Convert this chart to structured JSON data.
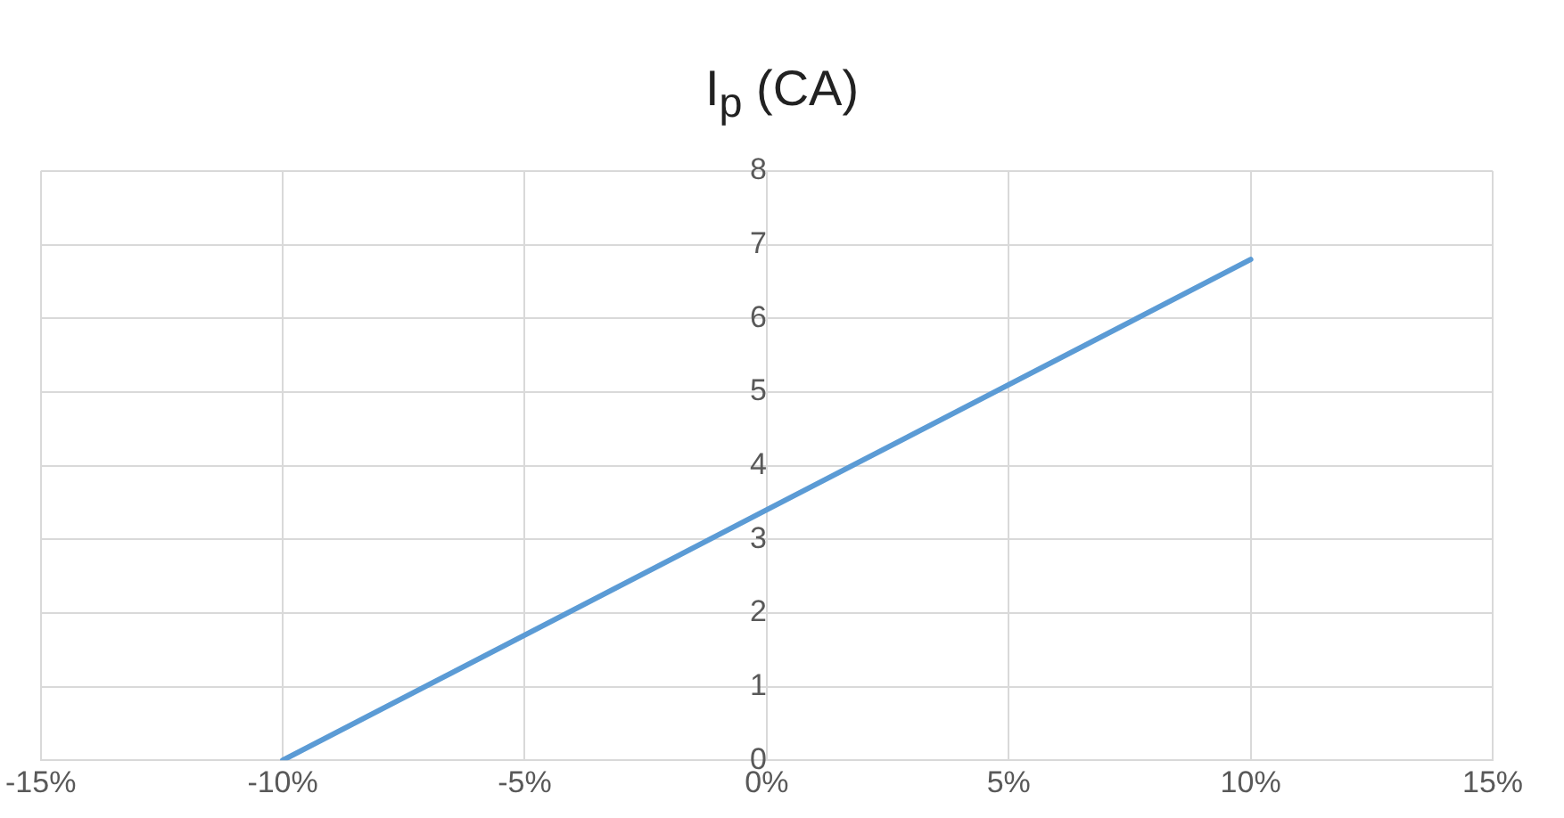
{
  "chart_data": {
    "type": "line",
    "title": "I$_{p}$ (CA)",
    "x": [
      -10,
      0,
      10
    ],
    "series": [
      {
        "color": "#5b9bd5",
        "values": [
          0,
          3.4,
          6.8
        ]
      }
    ],
    "xlim": [
      -15,
      15
    ],
    "xticks": [
      {
        "value": -15,
        "label": "-15%"
      },
      {
        "value": -10,
        "label": "-10%"
      },
      {
        "value": -5,
        "label": "-5%"
      },
      {
        "value": 0,
        "label": "0%"
      },
      {
        "value": 5,
        "label": "5%"
      },
      {
        "value": 10,
        "label": "10%"
      },
      {
        "value": 15,
        "label": "15%"
      }
    ],
    "ylim": [
      0,
      8
    ],
    "yticks": [
      0,
      1,
      2,
      3,
      4,
      5,
      6,
      7,
      8
    ],
    "grid": true,
    "legend": false,
    "marker": "none",
    "line_style": "solid"
  }
}
